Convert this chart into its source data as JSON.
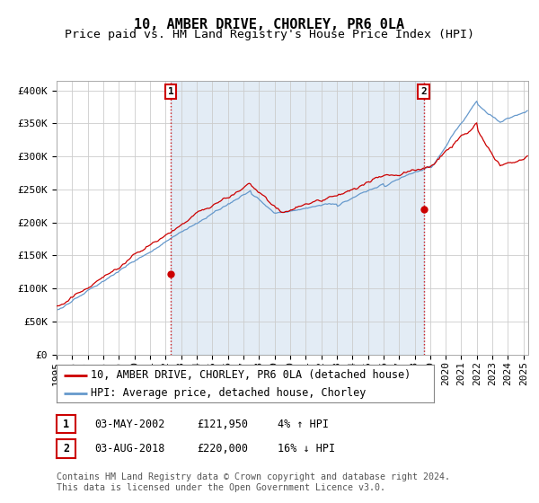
{
  "title": "10, AMBER DRIVE, CHORLEY, PR6 0LA",
  "subtitle": "Price paid vs. HM Land Registry's House Price Index (HPI)",
  "ylabel_ticks": [
    "£0",
    "£50K",
    "£100K",
    "£150K",
    "£200K",
    "£250K",
    "£300K",
    "£350K",
    "£400K"
  ],
  "ytick_values": [
    0,
    50000,
    100000,
    150000,
    200000,
    250000,
    300000,
    350000,
    400000
  ],
  "ylim": [
    0,
    415000
  ],
  "xlim_start": 1995.3,
  "xlim_end": 2025.3,
  "sale1_x": 2002.33,
  "sale1_y": 121950,
  "sale2_x": 2018.58,
  "sale2_y": 220000,
  "property_line_color": "#cc0000",
  "hpi_line_color": "#6699cc",
  "shade_color": "#ddeeff",
  "vline_color": "#cc0000",
  "grid_color": "#cccccc",
  "background_color": "#ffffff",
  "legend_label1": "10, AMBER DRIVE, CHORLEY, PR6 0LA (detached house)",
  "legend_label2": "HPI: Average price, detached house, Chorley",
  "table_row1": [
    "1",
    "03-MAY-2002",
    "£121,950",
    "4% ↑ HPI"
  ],
  "table_row2": [
    "2",
    "03-AUG-2018",
    "£220,000",
    "16% ↓ HPI"
  ],
  "footnote": "Contains HM Land Registry data © Crown copyright and database right 2024.\nThis data is licensed under the Open Government Licence v3.0.",
  "title_fontsize": 11,
  "subtitle_fontsize": 9.5,
  "tick_fontsize": 8,
  "legend_fontsize": 8.5,
  "table_fontsize": 8.5
}
